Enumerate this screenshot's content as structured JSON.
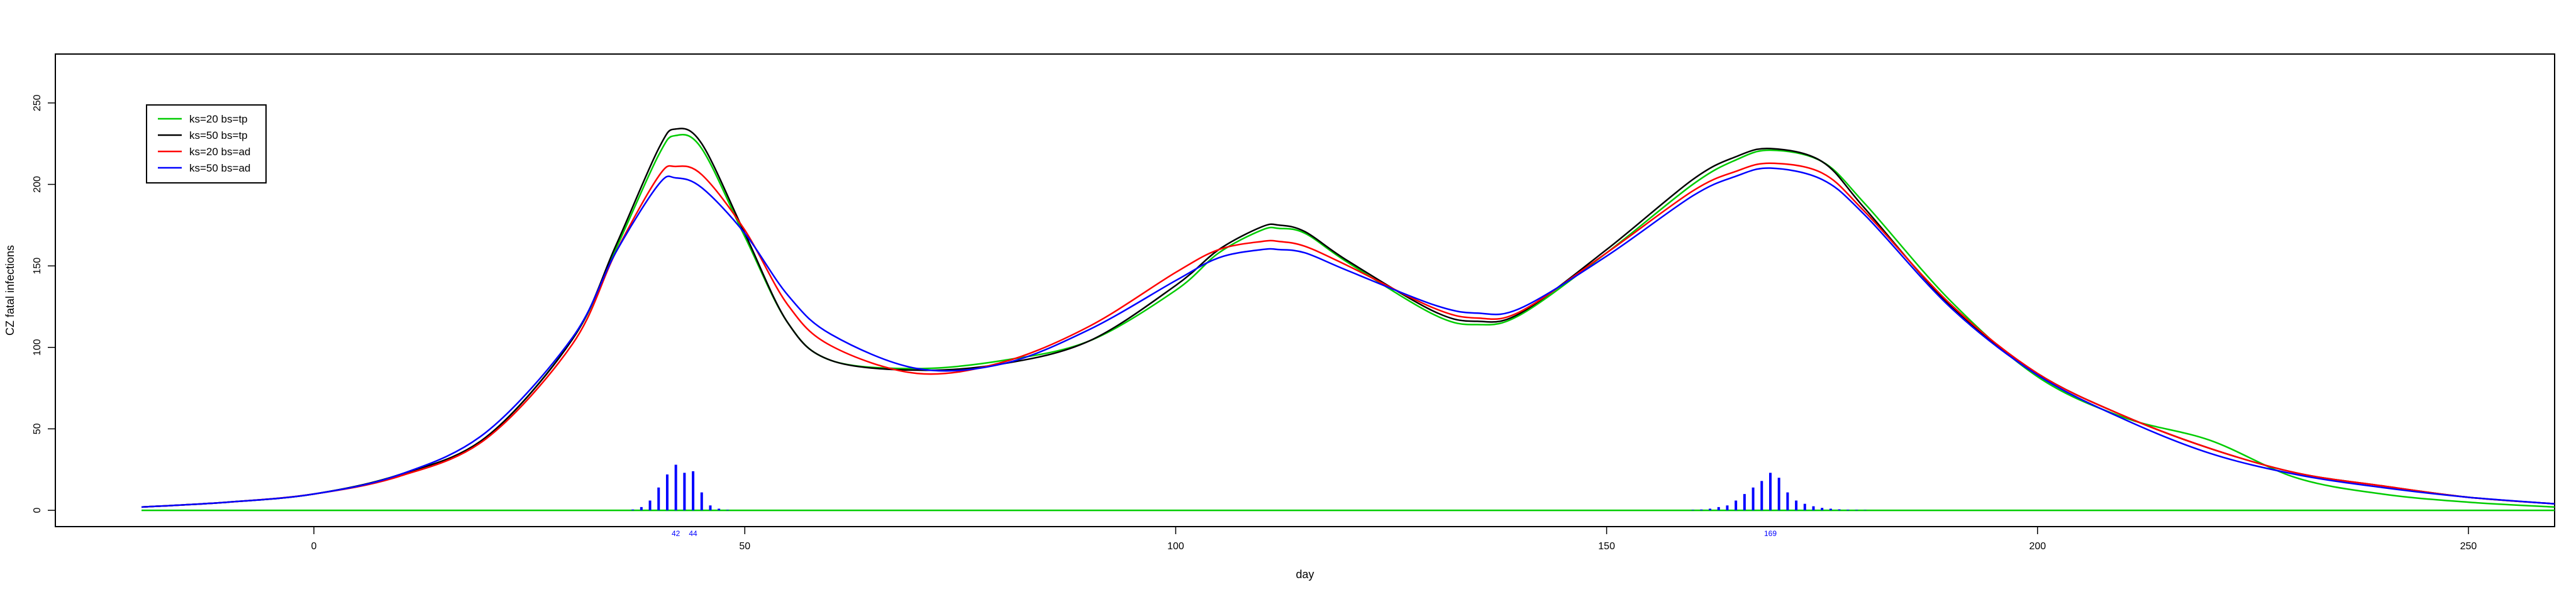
{
  "chart_data": {
    "type": "line",
    "title": "",
    "xlabel": "day",
    "ylabel": "CZ fatal infections",
    "xlim": [
      -30,
      260
    ],
    "ylim": [
      -10,
      280
    ],
    "x_ticks": [
      0,
      50,
      100,
      150,
      200,
      250
    ],
    "y_ticks": [
      0,
      50,
      100,
      150,
      200,
      250
    ],
    "grid": false,
    "legend": {
      "placement": "top-left",
      "entries": [
        {
          "label": "ks=20 bs=tp",
          "color": "#00cc00"
        },
        {
          "label": "ks=50 bs=tp",
          "color": "#000000"
        },
        {
          "label": "ks=20 bs=ad",
          "color": "#ff0000"
        },
        {
          "label": "ks=50 bs=ad",
          "color": "#0000ff"
        }
      ]
    },
    "x": [
      -20,
      -10,
      0,
      10,
      20,
      30,
      35,
      40,
      42,
      45,
      50,
      55,
      60,
      70,
      80,
      90,
      100,
      105,
      110,
      112,
      115,
      120,
      130,
      135,
      140,
      150,
      160,
      165,
      169,
      175,
      180,
      190,
      200,
      210,
      220,
      230,
      240,
      250,
      260
    ],
    "series": [
      {
        "name": "ks=20 bs=tp",
        "color": "#00cc00",
        "values": [
          2,
          5,
          10,
          22,
          45,
          105,
          160,
          218,
          230,
          222,
          168,
          115,
          92,
          87,
          92,
          104,
          135,
          158,
          172,
          173,
          170,
          152,
          120,
          114,
          120,
          158,
          200,
          215,
          221,
          214,
          188,
          128,
          82,
          57,
          43,
          20,
          10,
          5,
          2
        ]
      },
      {
        "name": "ks=50 bs=tp",
        "color": "#000000",
        "values": [
          2,
          5,
          10,
          22,
          45,
          105,
          162,
          222,
          234,
          225,
          170,
          115,
          92,
          86,
          90,
          104,
          138,
          160,
          174,
          175,
          171,
          153,
          122,
          116,
          121,
          160,
          203,
          217,
          222,
          214,
          185,
          125,
          84,
          58,
          38,
          23,
          15,
          8,
          4
        ]
      },
      {
        "name": "ks=20 bs=ad",
        "color": "#ff0000",
        "values": [
          2,
          5,
          10,
          21,
          44,
          102,
          158,
          205,
          211,
          206,
          172,
          126,
          101,
          84,
          91,
          113,
          146,
          160,
          165,
          165,
          162,
          150,
          124,
          118,
          122,
          158,
          196,
          208,
          213,
          207,
          183,
          126,
          84,
          58,
          38,
          23,
          15,
          8,
          4
        ]
      },
      {
        "name": "ks=50 bs=ad",
        "color": "#0000ff",
        "values": [
          2,
          5,
          10,
          22,
          48,
          106,
          158,
          200,
          204,
          198,
          170,
          132,
          108,
          87,
          90,
          111,
          141,
          155,
          160,
          160,
          158,
          147,
          126,
          121,
          124,
          156,
          193,
          205,
          210,
          203,
          181,
          124,
          83,
          56,
          35,
          22,
          14,
          8,
          4
        ]
      }
    ],
    "baseline": {
      "color": "#00cc00",
      "x": [
        -20,
        260
      ],
      "value": 0
    },
    "spikes": {
      "color": "#0000ff",
      "groups": [
        {
          "x": [
            37,
            38,
            39,
            40,
            41,
            42,
            43,
            44,
            45,
            46,
            47,
            48
          ],
          "values": [
            0.5,
            2,
            6,
            14,
            22,
            28,
            23,
            24,
            11,
            3,
            1,
            0.3
          ]
        },
        {
          "x": [
            160,
            161,
            162,
            163,
            164,
            165,
            166,
            167,
            168,
            169,
            170,
            171,
            172,
            173,
            174,
            175,
            176,
            177,
            178,
            179,
            180
          ],
          "values": [
            0.3,
            0.5,
            1,
            2,
            3,
            6,
            10,
            14,
            18,
            23,
            20,
            11,
            6,
            4,
            2.5,
            1.5,
            1,
            0.6,
            0.4,
            0.3,
            0.2
          ]
        }
      ],
      "labels": [
        {
          "x": 42,
          "text": "42"
        },
        {
          "x": 44,
          "text": "44"
        },
        {
          "x": 169,
          "text": "169"
        }
      ]
    }
  }
}
